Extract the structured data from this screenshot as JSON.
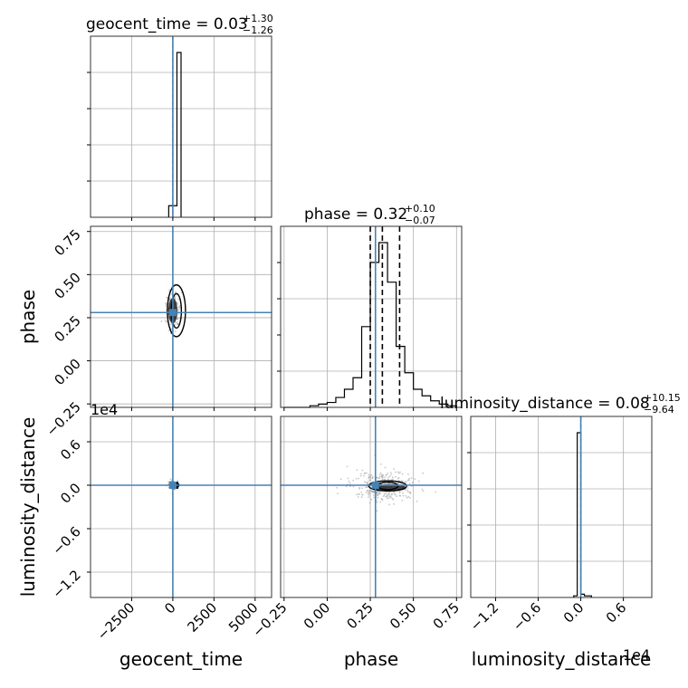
{
  "chart_data": {
    "type": "corner",
    "parameters": [
      "geocent_time",
      "phase",
      "luminosity_distance"
    ],
    "colors": {
      "truth": "#4682b4",
      "hist": "#000000",
      "grid": "#b0b0b0",
      "scatter": "#9a9a9a"
    },
    "grid": true,
    "panels": {
      "geocent_time": {
        "title": "geocent_time = 0.03",
        "title_sup": "+1.30",
        "title_sub": "−1.26",
        "xlim": [
          -5000,
          6000
        ],
        "truth": 0,
        "hist_bins": [
          -250,
          0,
          250,
          500
        ],
        "hist_counts": [
          0.07,
          0.07,
          1.0
        ],
        "quantiles": [
          -1.23,
          0.03,
          1.33
        ]
      },
      "phase": {
        "title": "phase = 0.32",
        "title_sup": "+0.10",
        "title_sub": "−0.07",
        "xlim": [
          -0.27,
          0.78
        ],
        "truth": 0.28,
        "hist_bins": [
          -0.25,
          -0.2,
          -0.15,
          -0.1,
          -0.05,
          0.0,
          0.05,
          0.1,
          0.15,
          0.2,
          0.25,
          0.3,
          0.35,
          0.4,
          0.45,
          0.5,
          0.55,
          0.6,
          0.65,
          0.7,
          0.75
        ],
        "hist_counts": [
          0,
          0,
          0,
          0.01,
          0.02,
          0.03,
          0.06,
          0.11,
          0.18,
          0.49,
          0.88,
          1.0,
          0.76,
          0.37,
          0.21,
          0.11,
          0.07,
          0.04,
          0.02,
          0.01
        ],
        "quantiles": [
          0.25,
          0.32,
          0.42
        ]
      },
      "luminosity_distance": {
        "title": "luminosity_distance = 0.08",
        "title_sup": "+10.15",
        "title_sub": "−9.64",
        "xlim": [
          -15500,
          10000
        ],
        "truth": 0,
        "hist_bins": [
          -1000,
          -500,
          0,
          500,
          1500
        ],
        "hist_counts": [
          0.01,
          1.0,
          0.02,
          0.01
        ],
        "quantiles": [
          -9.56,
          0.08,
          10.23
        ]
      }
    },
    "axes": {
      "geocent_time": {
        "ticks": [
          -2500,
          0,
          2500,
          5000
        ],
        "tick_labels": [
          "−2500",
          "0",
          "2500",
          "5000"
        ]
      },
      "phase": {
        "ticks": [
          -0.25,
          0.0,
          0.25,
          0.5,
          0.75
        ],
        "tick_labels": [
          "−0.25",
          "0.00",
          "0.25",
          "0.50",
          "0.75"
        ]
      },
      "phase_y": {
        "ylim": [
          -0.27,
          0.78
        ],
        "ticks": [
          -0.25,
          0.0,
          0.25,
          0.5,
          0.75
        ],
        "tick_labels": [
          "−0.25",
          "0.00",
          "0.25",
          "0.50",
          "0.75"
        ]
      },
      "luminosity_distance": {
        "ticks": [
          -12000,
          -6000,
          0,
          6000
        ],
        "tick_labels": [
          "−1.2",
          "−0.6",
          "0.0",
          "0.6"
        ],
        "offset": "1e4"
      },
      "luminosity_distance_y": {
        "ylim": [
          -15500,
          9500
        ],
        "ticks": [
          -12000,
          -6000,
          0,
          6000
        ],
        "tick_labels": [
          "−1.2",
          "−0.6",
          "0.0",
          "0.6"
        ],
        "offset": "1e4"
      }
    },
    "xlabels": [
      "geocent_time",
      "phase",
      "luminosity_distance"
    ],
    "ylabels": [
      "phase",
      "luminosity_distance"
    ],
    "pair_panels": [
      {
        "x": "geocent_time",
        "y": "phase",
        "center": [
          0,
          0.29
        ],
        "contours": [
          {
            "w": 300,
            "h": 0.1
          },
          {
            "w": 550,
            "h": 0.15
          }
        ],
        "truth": [
          0,
          0.28
        ]
      },
      {
        "x": "geocent_time",
        "y": "luminosity_distance",
        "center": [
          0,
          0
        ],
        "contours": [
          {
            "w": 150,
            "h": 300
          }
        ],
        "truth": [
          0,
          0
        ]
      },
      {
        "x": "phase",
        "y": "luminosity_distance",
        "center": [
          0.33,
          -100
        ],
        "contours": [
          {
            "w": 0.06,
            "h": 500
          },
          {
            "w": 0.11,
            "h": 700
          }
        ],
        "truth": [
          0.28,
          0
        ]
      }
    ]
  }
}
